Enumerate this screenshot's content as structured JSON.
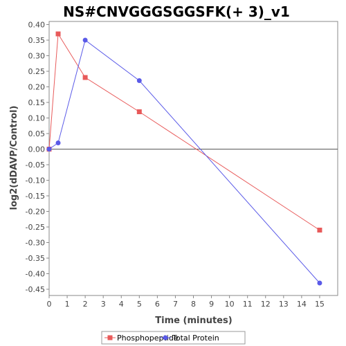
{
  "chart_data": {
    "type": "line",
    "title": "NS#CNVGGGSGGSFK(+ 3)_v1",
    "xlabel": "Time (minutes)",
    "ylabel": "log2(dDAVP/Control)",
    "xlim": [
      0,
      16
    ],
    "ylim": [
      -0.47,
      0.41
    ],
    "x_ticks": [
      "0",
      "1",
      "2",
      "3",
      "4",
      "5",
      "6",
      "7",
      "8",
      "9",
      "10",
      "11",
      "12",
      "13",
      "14",
      "15"
    ],
    "y_ticks": [
      "0.40",
      "0.35",
      "0.30",
      "0.25",
      "0.20",
      "0.15",
      "0.10",
      "0.05",
      "0.00",
      "-0.05",
      "-0.10",
      "-0.15",
      "-0.20",
      "-0.25",
      "-0.30",
      "-0.35",
      "-0.40",
      "-0.45"
    ],
    "legend_position": "bottom",
    "grid": false,
    "series": [
      {
        "name": "Phosphopeptide",
        "color": "#e85a5a",
        "marker": "square",
        "x": [
          0,
          0.5,
          2,
          5,
          15
        ],
        "y": [
          0.0,
          0.37,
          0.23,
          0.12,
          -0.26
        ]
      },
      {
        "name": "Total Protein",
        "color": "#5a5ae8",
        "marker": "circle",
        "x": [
          0,
          0.5,
          2,
          5,
          15
        ],
        "y": [
          0.0,
          0.02,
          0.35,
          0.22,
          -0.43
        ]
      }
    ]
  }
}
